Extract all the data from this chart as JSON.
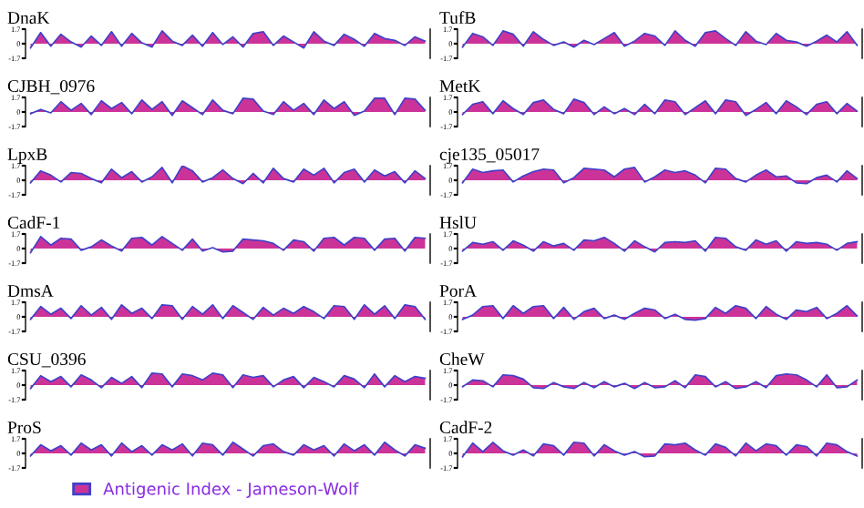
{
  "chart_data": [
    {
      "type": "area",
      "title": "DnaK",
      "ylim": [
        -1.7,
        1.7
      ],
      "yticks": [
        1.7,
        0,
        -1.7
      ],
      "tick_labels": "y",
      "grid": false,
      "legend": "bottom",
      "categories": [
        null,
        null,
        null,
        null,
        null,
        null,
        null,
        null,
        null,
        null,
        null,
        null,
        null,
        null,
        null,
        null,
        null,
        null,
        null,
        null,
        null,
        null,
        null,
        null,
        null,
        null,
        null,
        null,
        null,
        null,
        null,
        null,
        null,
        null,
        null,
        null,
        null,
        null,
        null,
        null
      ],
      "series": [
        {
          "name": "Antigenic Index - Jameson-Wolf",
          "color": "#cc3399",
          "values": [
            -0.5,
            1.3,
            -0.3,
            1.1,
            0.2,
            -0.4,
            0.9,
            -0.2,
            1.4,
            -0.3,
            1.2,
            0.1,
            -0.4,
            1.5,
            0.3,
            -0.2,
            1.0,
            -0.3,
            1.3,
            -0.1,
            0.8,
            -0.4,
            1.2,
            1.4,
            -0.2,
            0.9,
            0.2,
            -0.5,
            1.4,
            0.3,
            -0.2,
            1.1,
            0.5,
            -0.3,
            1.2,
            0.6,
            0.4,
            -0.2,
            0.8,
            0.3
          ]
        }
      ]
    },
    {
      "type": "area",
      "title": "TufB",
      "ylim": [
        -1.7,
        1.7
      ],
      "yticks": [
        1.7,
        0,
        -1.7
      ],
      "tick_labels": "y",
      "grid": false,
      "categories": [
        null,
        null,
        null,
        null,
        null,
        null,
        null,
        null,
        null,
        null,
        null,
        null,
        null,
        null,
        null,
        null,
        null,
        null,
        null,
        null,
        null,
        null,
        null,
        null,
        null,
        null,
        null,
        null,
        null,
        null,
        null,
        null,
        null,
        null,
        null,
        null,
        null,
        null,
        null,
        null
      ],
      "series": [
        {
          "color": "#cc3399",
          "values": [
            -0.4,
            1.2,
            0.8,
            -0.2,
            1.5,
            1.1,
            -0.3,
            1.4,
            0.5,
            -0.2,
            0.2,
            -0.4,
            0.4,
            -0.1,
            0.6,
            1.3,
            -0.3,
            0.3,
            1.2,
            0.9,
            -0.2,
            1.5,
            0.4,
            -0.3,
            1.3,
            1.5,
            0.6,
            -0.2,
            1.4,
            0.3,
            -0.1,
            1.2,
            0.4,
            0.2,
            -0.3,
            0.3,
            1.0,
            0.2,
            1.4,
            -0.2
          ]
        }
      ]
    },
    {
      "type": "area",
      "title": "CJBH_0976",
      "ylim": [
        -1.7,
        1.7
      ],
      "yticks": [
        1.7,
        0,
        -1.7
      ],
      "tick_labels": "y",
      "grid": false,
      "categories": [
        null,
        null,
        null,
        null,
        null,
        null,
        null,
        null,
        null,
        null,
        null,
        null,
        null,
        null,
        null,
        null,
        null,
        null,
        null,
        null,
        null,
        null,
        null,
        null,
        null,
        null,
        null,
        null,
        null,
        null,
        null,
        null,
        null,
        null,
        null,
        null,
        null,
        null,
        null,
        null
      ],
      "series": [
        {
          "color": "#cc3399",
          "values": [
            -0.2,
            0.3,
            -0.1,
            1.2,
            0.2,
            1.0,
            -0.3,
            1.3,
            0.4,
            1.1,
            -0.2,
            1.4,
            0.3,
            1.2,
            -0.4,
            1.3,
            0.5,
            -0.3,
            1.4,
            0.2,
            -0.2,
            1.6,
            1.5,
            0.1,
            -0.3,
            1.2,
            0.2,
            1.0,
            -0.3,
            1.4,
            0.4,
            1.2,
            -0.4,
            0.1,
            1.6,
            1.6,
            -0.3,
            1.6,
            1.5,
            0.2
          ]
        }
      ]
    },
    {
      "type": "area",
      "title": "MetK",
      "ylim": [
        -1.7,
        1.7
      ],
      "yticks": [
        1.7,
        0,
        -1.7
      ],
      "tick_labels": "y",
      "grid": false,
      "categories": [
        null,
        null,
        null,
        null,
        null,
        null,
        null,
        null,
        null,
        null,
        null,
        null,
        null,
        null,
        null,
        null,
        null,
        null,
        null,
        null,
        null,
        null,
        null,
        null,
        null,
        null,
        null,
        null,
        null,
        null,
        null,
        null,
        null,
        null,
        null,
        null,
        null,
        null,
        null,
        null
      ],
      "series": [
        {
          "color": "#cc3399",
          "values": [
            -0.3,
            0.9,
            1.2,
            -0.2,
            1.3,
            0.4,
            -0.3,
            1.1,
            1.4,
            0.3,
            -0.2,
            1.5,
            1.1,
            -0.3,
            0.6,
            -0.2,
            0.4,
            -0.3,
            0.9,
            -0.2,
            1.4,
            1.2,
            -0.3,
            0.5,
            1.3,
            -0.2,
            1.4,
            1.2,
            -0.4,
            0.3,
            1.1,
            -0.2,
            1.3,
            0.6,
            -0.3,
            0.9,
            1.2,
            -0.2,
            1.0,
            0.1
          ]
        }
      ]
    },
    {
      "type": "area",
      "title": "LpxB",
      "ylim": [
        -1.7,
        1.7
      ],
      "yticks": [
        1.7,
        0,
        -1.7
      ],
      "tick_labels": "y",
      "grid": false,
      "categories": [
        null,
        null,
        null,
        null,
        null,
        null,
        null,
        null,
        null,
        null,
        null,
        null,
        null,
        null,
        null,
        null,
        null,
        null,
        null,
        null,
        null,
        null,
        null,
        null,
        null,
        null,
        null,
        null,
        null,
        null,
        null,
        null,
        null,
        null,
        null,
        null,
        null,
        null,
        null,
        null
      ],
      "series": [
        {
          "color": "#cc3399",
          "values": [
            -0.3,
            1.1,
            0.6,
            -0.2,
            0.9,
            0.8,
            0.2,
            -0.3,
            1.3,
            0.3,
            1.0,
            -0.2,
            0.4,
            1.5,
            -0.3,
            1.7,
            1.1,
            -0.2,
            0.3,
            1.2,
            0.2,
            -0.4,
            0.8,
            -0.3,
            1.4,
            0.2,
            -0.2,
            1.3,
            0.6,
            1.4,
            -0.3,
            0.9,
            1.3,
            -0.2,
            1.2,
            0.5,
            1.0,
            -0.3,
            1.1,
            0.2
          ]
        }
      ]
    },
    {
      "type": "area",
      "title": "cje135_05017",
      "ylim": [
        -1.7,
        1.7
      ],
      "yticks": [
        1.7,
        0,
        -1.7
      ],
      "tick_labels": "y",
      "grid": false,
      "categories": [
        null,
        null,
        null,
        null,
        null,
        null,
        null,
        null,
        null,
        null,
        null,
        null,
        null,
        null,
        null,
        null,
        null,
        null,
        null,
        null,
        null,
        null,
        null,
        null,
        null,
        null,
        null,
        null,
        null,
        null,
        null,
        null,
        null,
        null,
        null,
        null,
        null,
        null,
        null,
        null
      ],
      "series": [
        {
          "color": "#cc3399",
          "values": [
            -0.3,
            1.3,
            0.9,
            1.1,
            1.2,
            -0.2,
            0.5,
            1.0,
            1.3,
            1.2,
            -0.3,
            0.3,
            1.4,
            1.3,
            1.2,
            0.4,
            1.3,
            1.5,
            -0.2,
            0.4,
            1.2,
            0.9,
            1.1,
            0.6,
            -0.3,
            1.4,
            1.3,
            0.2,
            -0.2,
            0.6,
            1.2,
            0.4,
            0.5,
            -0.3,
            -0.4,
            0.3,
            0.6,
            -0.2,
            1.1,
            0.2
          ]
        }
      ]
    },
    {
      "type": "area",
      "title": "CadF-1",
      "ylim": [
        -1.7,
        1.7
      ],
      "yticks": [
        1.7,
        0,
        -1.7
      ],
      "tick_labels": "y",
      "grid": false,
      "categories": [
        null,
        null,
        null,
        null,
        null,
        null,
        null,
        null,
        null,
        null,
        null,
        null,
        null,
        null,
        null,
        null,
        null,
        null,
        null,
        null,
        null,
        null,
        null,
        null,
        null,
        null,
        null,
        null,
        null,
        null,
        null,
        null,
        null,
        null,
        null,
        null,
        null,
        null,
        null,
        null
      ],
      "series": [
        {
          "color": "#cc3399",
          "values": [
            -0.5,
            1.4,
            0.4,
            1.2,
            1.1,
            -0.2,
            0.2,
            1.0,
            0.3,
            -0.3,
            1.2,
            1.3,
            0.4,
            1.4,
            0.6,
            -0.2,
            1.1,
            -0.3,
            0.1,
            -0.4,
            -0.3,
            1.1,
            1.0,
            0.9,
            0.6,
            -0.2,
            1.0,
            0.8,
            -0.3,
            1.2,
            1.3,
            0.4,
            1.3,
            1.2,
            -0.2,
            1.1,
            1.2,
            -0.3,
            1.3,
            1.2
          ]
        }
      ]
    },
    {
      "type": "area",
      "title": "HslU",
      "ylim": [
        -1.7,
        1.7
      ],
      "yticks": [
        1.7,
        0,
        -1.7
      ],
      "tick_labels": "y",
      "grid": false,
      "categories": [
        null,
        null,
        null,
        null,
        null,
        null,
        null,
        null,
        null,
        null,
        null,
        null,
        null,
        null,
        null,
        null,
        null,
        null,
        null,
        null,
        null,
        null,
        null,
        null,
        null,
        null,
        null,
        null,
        null,
        null,
        null,
        null,
        null,
        null,
        null,
        null,
        null,
        null,
        null,
        null
      ],
      "series": [
        {
          "color": "#cc3399",
          "values": [
            -0.3,
            0.7,
            0.5,
            0.8,
            -0.2,
            0.9,
            0.4,
            -0.3,
            0.8,
            0.3,
            0.6,
            -0.2,
            1.0,
            0.9,
            1.3,
            0.6,
            -0.3,
            0.9,
            0.2,
            -0.4,
            0.7,
            0.8,
            0.7,
            0.9,
            -0.3,
            1.3,
            1.2,
            0.2,
            -0.2,
            1.0,
            0.5,
            0.9,
            -0.3,
            0.8,
            0.6,
            0.7,
            0.5,
            -0.2,
            0.6,
            0.8
          ]
        }
      ]
    },
    {
      "type": "area",
      "title": "DmsA",
      "ylim": [
        -1.7,
        1.7
      ],
      "yticks": [
        1.7,
        0,
        -1.7
      ],
      "tick_labels": "y",
      "grid": false,
      "categories": [
        null,
        null,
        null,
        null,
        null,
        null,
        null,
        null,
        null,
        null,
        null,
        null,
        null,
        null,
        null,
        null,
        null,
        null,
        null,
        null,
        null,
        null,
        null,
        null,
        null,
        null,
        null,
        null,
        null,
        null,
        null,
        null,
        null,
        null,
        null,
        null,
        null,
        null,
        null,
        null
      ],
      "series": [
        {
          "color": "#cc3399",
          "values": [
            -0.3,
            1.2,
            0.3,
            1.0,
            -0.2,
            1.3,
            0.2,
            1.1,
            -0.3,
            1.4,
            0.4,
            1.0,
            -0.2,
            1.4,
            1.3,
            -0.3,
            1.2,
            0.3,
            1.4,
            -0.2,
            1.3,
            0.5,
            -0.3,
            1.1,
            0.2,
            1.0,
            0.4,
            1.2,
            0.6,
            -0.2,
            1.3,
            1.2,
            -0.3,
            1.4,
            0.3,
            1.3,
            -0.2,
            1.4,
            1.2,
            -0.3
          ]
        }
      ]
    },
    {
      "type": "area",
      "title": "PorA",
      "ylim": [
        -1.7,
        1.7
      ],
      "yticks": [
        1.7,
        0,
        -1.7
      ],
      "tick_labels": "y",
      "grid": false,
      "categories": [
        null,
        null,
        null,
        null,
        null,
        null,
        null,
        null,
        null,
        null,
        null,
        null,
        null,
        null,
        null,
        null,
        null,
        null,
        null,
        null,
        null,
        null,
        null,
        null,
        null,
        null,
        null,
        null,
        null,
        null,
        null,
        null,
        null,
        null,
        null,
        null,
        null,
        null,
        null,
        null
      ],
      "series": [
        {
          "color": "#cc3399",
          "values": [
            -0.3,
            0.2,
            1.2,
            1.3,
            -0.2,
            1.3,
            0.4,
            1.2,
            1.3,
            -0.2,
            1.1,
            -0.3,
            0.6,
            1.0,
            -0.2,
            0.2,
            -0.3,
            0.4,
            1.0,
            0.8,
            -0.2,
            0.3,
            -0.3,
            -0.4,
            -0.2,
            1.1,
            0.4,
            1.3,
            1.0,
            -0.2,
            1.2,
            0.3,
            -0.3,
            0.8,
            0.6,
            1.1,
            -0.2,
            0.4,
            1.3,
            0.1
          ]
        }
      ]
    },
    {
      "type": "area",
      "title": "CSU_0396",
      "ylim": [
        -1.7,
        1.7
      ],
      "yticks": [
        1.7,
        0,
        -1.7
      ],
      "tick_labels": "y",
      "grid": false,
      "categories": [
        null,
        null,
        null,
        null,
        null,
        null,
        null,
        null,
        null,
        null,
        null,
        null,
        null,
        null,
        null,
        null,
        null,
        null,
        null,
        null,
        null,
        null,
        null,
        null,
        null,
        null,
        null,
        null,
        null,
        null,
        null,
        null,
        null,
        null,
        null,
        null,
        null,
        null,
        null,
        null
      ],
      "series": [
        {
          "color": "#cc3399",
          "values": [
            -0.4,
            1.1,
            0.4,
            1.0,
            -0.2,
            1.2,
            0.6,
            -0.3,
            0.9,
            0.2,
            1.0,
            -0.3,
            1.4,
            1.3,
            -0.2,
            1.3,
            1.1,
            0.6,
            1.4,
            1.2,
            -0.3,
            1.2,
            0.9,
            1.1,
            -0.2,
            0.6,
            1.0,
            -0.3,
            0.9,
            0.4,
            -0.2,
            1.1,
            0.7,
            -0.3,
            1.3,
            -0.2,
            1.1,
            0.4,
            1.0,
            0.8
          ]
        }
      ]
    },
    {
      "type": "area",
      "title": "CheW",
      "ylim": [
        -1.7,
        1.7
      ],
      "yticks": [
        1.7,
        0,
        -1.7
      ],
      "tick_labels": "y",
      "grid": false,
      "categories": [
        null,
        null,
        null,
        null,
        null,
        null,
        null,
        null,
        null,
        null,
        null,
        null,
        null,
        null,
        null,
        null,
        null,
        null,
        null,
        null,
        null,
        null,
        null,
        null,
        null,
        null,
        null,
        null,
        null,
        null,
        null,
        null,
        null,
        null,
        null,
        null,
        null,
        null,
        null,
        null
      ],
      "series": [
        {
          "color": "#cc3399",
          "values": [
            -0.2,
            0.6,
            0.5,
            -0.2,
            1.2,
            1.1,
            0.7,
            -0.3,
            -0.4,
            0.3,
            -0.2,
            -0.4,
            0.3,
            -0.3,
            0.4,
            -0.2,
            0.2,
            -0.4,
            0.3,
            -0.3,
            -0.2,
            0.5,
            -0.3,
            1.2,
            1.0,
            -0.2,
            0.4,
            -0.4,
            -0.2,
            0.4,
            -0.3,
            1.1,
            1.3,
            1.2,
            0.6,
            -0.2,
            1.2,
            -0.3,
            -0.2,
            0.6
          ]
        }
      ]
    },
    {
      "type": "area",
      "title": "ProS",
      "ylim": [
        -1.7,
        1.7
      ],
      "yticks": [
        1.7,
        0,
        -1.7
      ],
      "tick_labels": "y",
      "grid": false,
      "categories": [
        null,
        null,
        null,
        null,
        null,
        null,
        null,
        null,
        null,
        null,
        null,
        null,
        null,
        null,
        null,
        null,
        null,
        null,
        null,
        null,
        null,
        null,
        null,
        null,
        null,
        null,
        null,
        null,
        null,
        null,
        null,
        null,
        null,
        null,
        null,
        null,
        null,
        null,
        null,
        null
      ],
      "series": [
        {
          "color": "#cc3399",
          "values": [
            -0.3,
            1.0,
            0.3,
            0.9,
            -0.2,
            1.2,
            0.4,
            1.0,
            -0.3,
            1.2,
            0.2,
            0.9,
            -0.2,
            1.0,
            0.4,
            1.1,
            -0.3,
            1.2,
            1.0,
            -0.2,
            1.3,
            0.5,
            -0.3,
            0.9,
            1.1,
            0.2,
            -0.2,
            1.0,
            0.4,
            0.9,
            -0.3,
            1.1,
            0.3,
            1.0,
            -0.2,
            1.3,
            0.4,
            -0.3,
            1.0,
            0.6
          ]
        }
      ]
    },
    {
      "type": "area",
      "title": "CadF-2",
      "ylim": [
        -1.7,
        1.7
      ],
      "yticks": [
        1.7,
        0,
        -1.7
      ],
      "tick_labels": "y",
      "grid": false,
      "categories": [
        null,
        null,
        null,
        null,
        null,
        null,
        null,
        null,
        null,
        null,
        null,
        null,
        null,
        null,
        null,
        null,
        null,
        null,
        null,
        null,
        null,
        null,
        null,
        null,
        null,
        null,
        null,
        null,
        null,
        null,
        null,
        null,
        null,
        null,
        null,
        null,
        null,
        null,
        null,
        null
      ],
      "series": [
        {
          "color": "#cc3399",
          "values": [
            -0.4,
            1.2,
            0.2,
            1.3,
            0.3,
            -0.2,
            0.4,
            -0.3,
            1.1,
            0.9,
            -0.2,
            1.3,
            1.2,
            -0.3,
            1.0,
            0.3,
            -0.2,
            0.2,
            -0.4,
            -0.3,
            1.1,
            1.0,
            1.2,
            0.4,
            -0.2,
            1.1,
            0.7,
            -0.3,
            1.2,
            0.3,
            1.1,
            0.9,
            -0.2,
            1.0,
            0.8,
            -0.3,
            1.2,
            1.0,
            0.2,
            -0.3
          ]
        }
      ]
    }
  ]
}
